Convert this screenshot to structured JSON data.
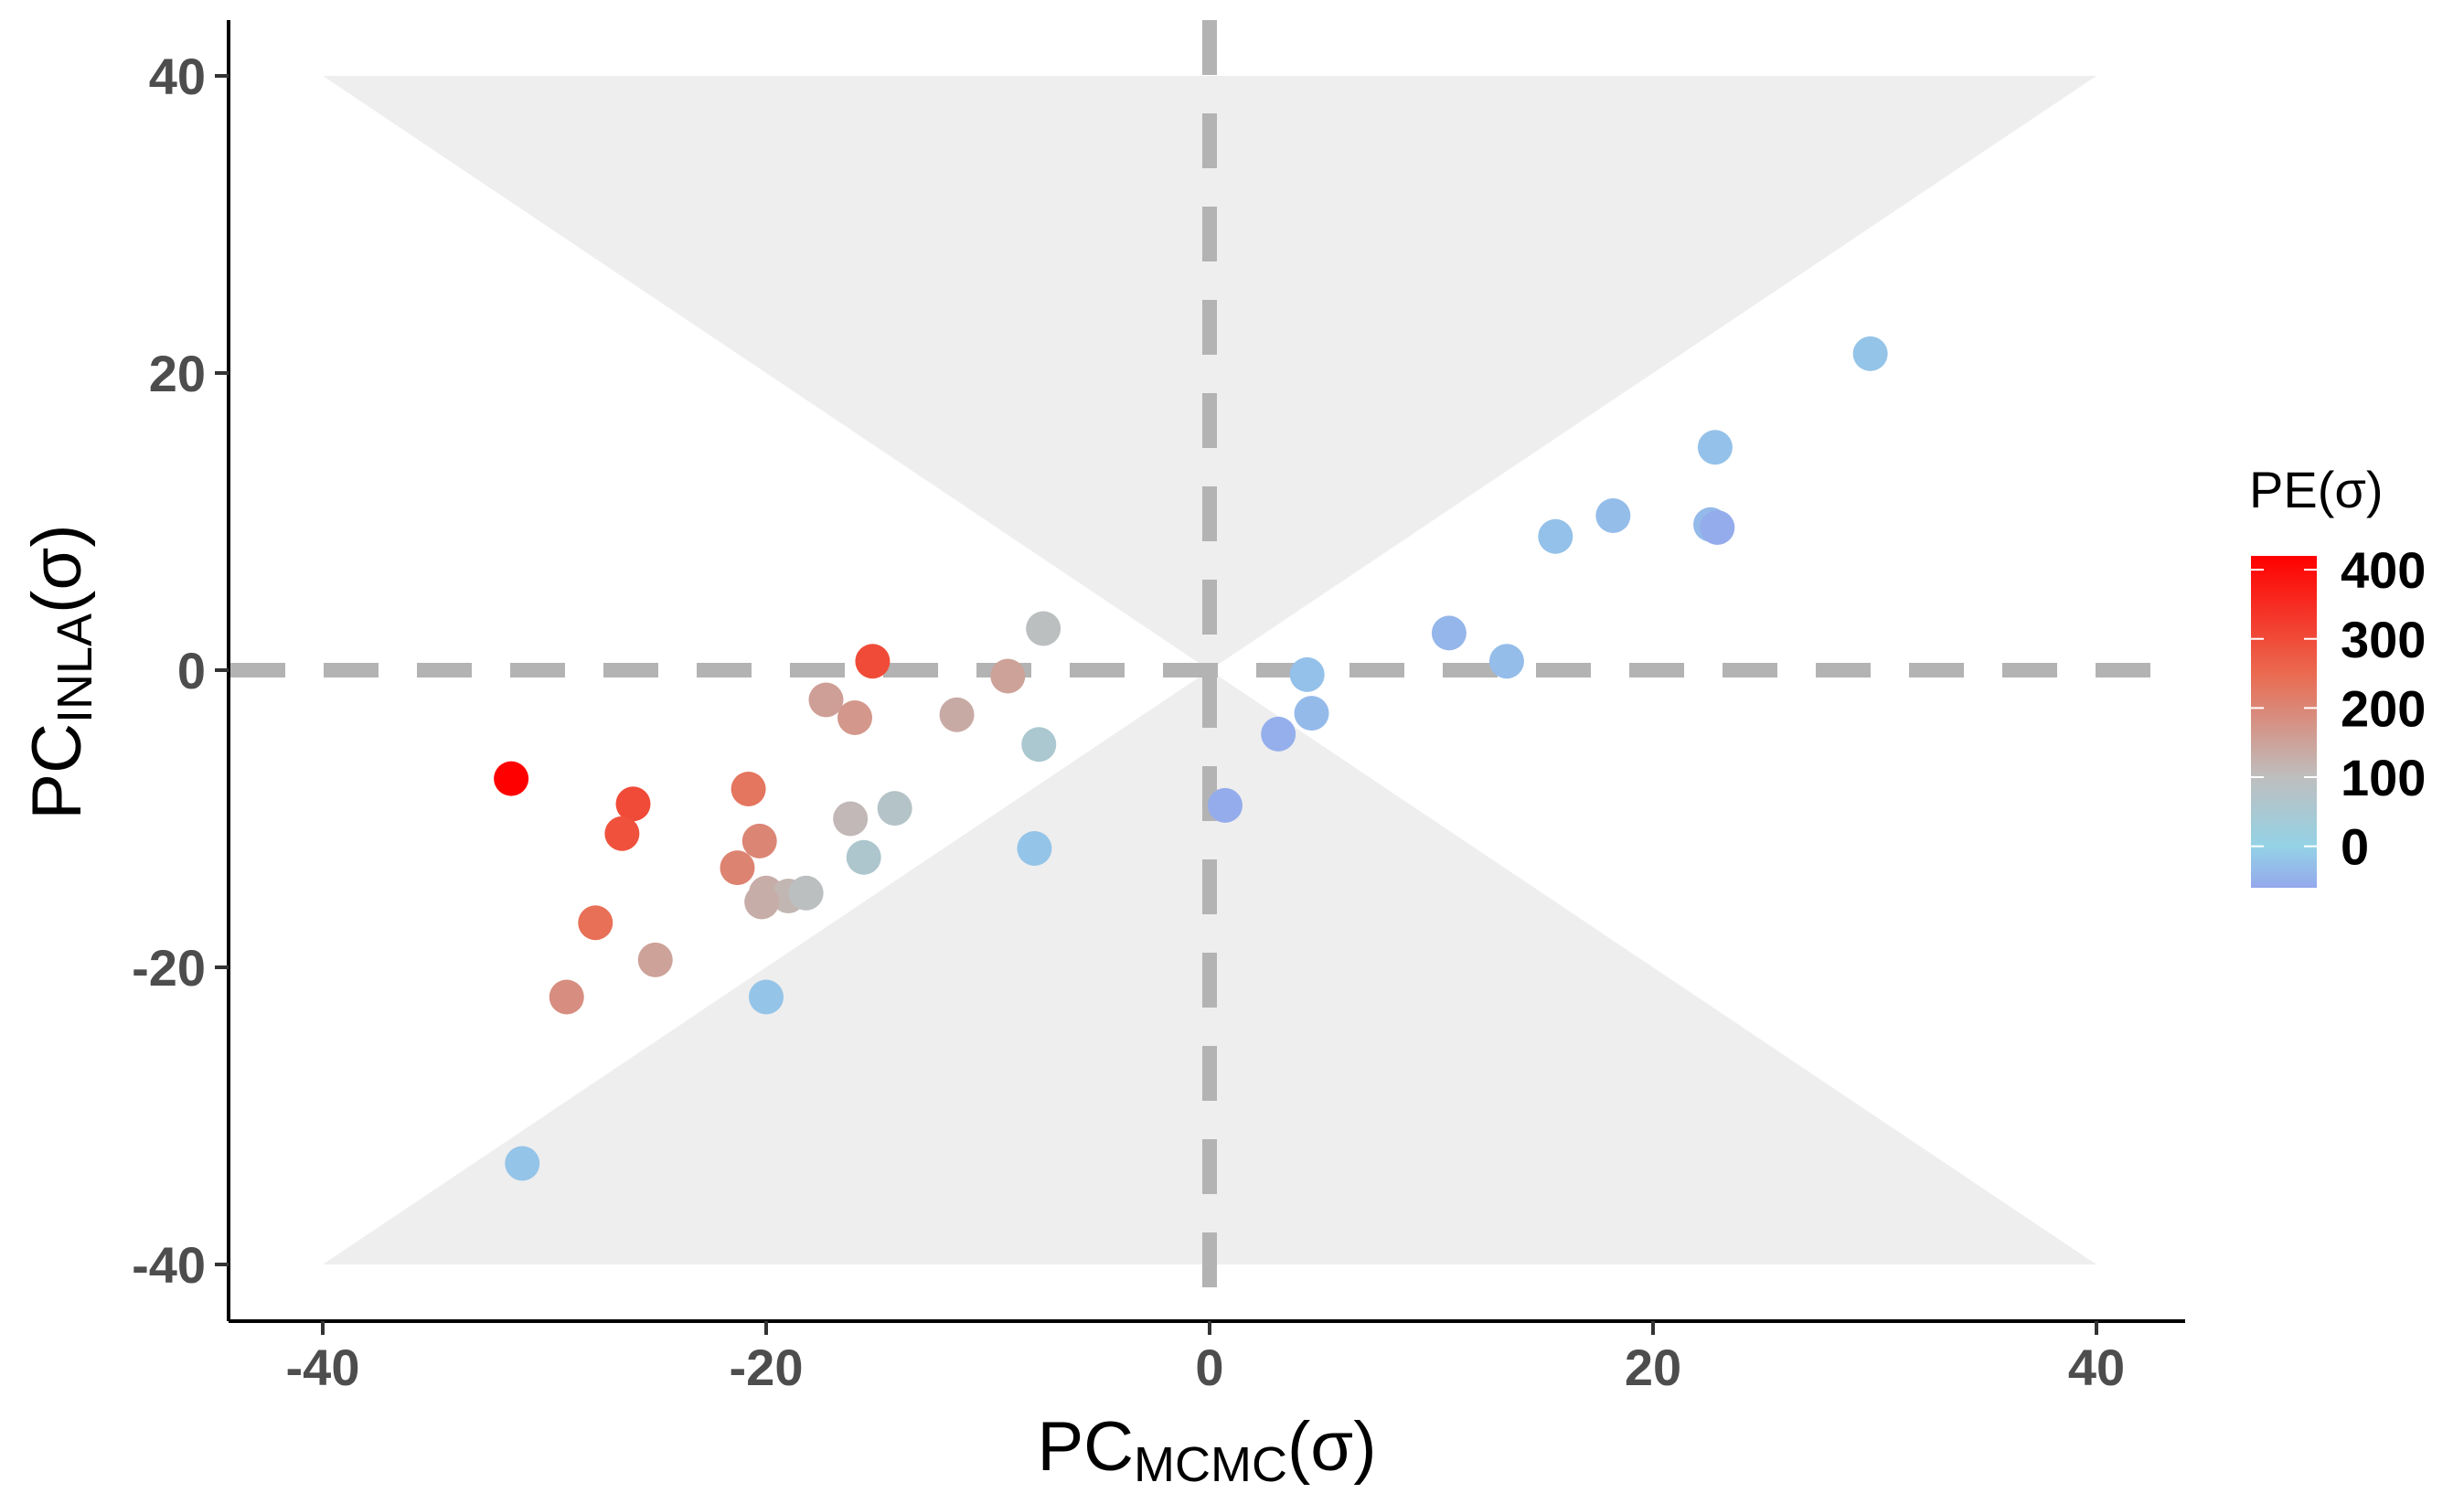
{
  "chart_data": {
    "type": "scatter",
    "title": "",
    "xlabel": {
      "main": "PC",
      "sub": "MCMC",
      "suffix": "(σ)"
    },
    "ylabel": {
      "main": "PC",
      "sub": "INLA",
      "suffix": "(σ)"
    },
    "xlim": [
      -44,
      44
    ],
    "ylim": [
      -44,
      44
    ],
    "xticks": [
      -40,
      -20,
      0,
      20,
      40
    ],
    "yticks": [
      -40,
      -20,
      0,
      20,
      40
    ],
    "grid": false,
    "reference_lines": {
      "x": 0,
      "y": 0,
      "style": "dashed",
      "color": "#b3b3b3"
    },
    "shaded_regions": [
      {
        "name": "upper-cone",
        "polygon": [
          [
            -40,
            40
          ],
          [
            40,
            40
          ],
          [
            0,
            0
          ]
        ],
        "color": "#eeeeee"
      },
      {
        "name": "lower-cone",
        "polygon": [
          [
            -40,
            -40
          ],
          [
            40,
            -40
          ],
          [
            0,
            0
          ]
        ],
        "color": "#eeeeee"
      }
    ],
    "color_scale": {
      "title": "PE(σ)",
      "domain": [
        -60,
        420
      ],
      "stops": [
        {
          "value": -60,
          "color": "#94a8ec"
        },
        {
          "value": 0,
          "color": "#94d2e6"
        },
        {
          "value": 100,
          "color": "#bebebe"
        },
        {
          "value": 250,
          "color": "#ea6a50"
        },
        {
          "value": 420,
          "color": "#ff0000"
        }
      ],
      "tick_values": [
        0,
        100,
        200,
        300,
        400
      ],
      "tick_labels": [
        "0",
        "100",
        "200",
        "300",
        "400"
      ],
      "legend_position": "right"
    },
    "points": [
      {
        "x": -31.5,
        "y": -7.3,
        "pe": 420
      },
      {
        "x": -26.0,
        "y": -9.0,
        "pe": 300
      },
      {
        "x": -26.5,
        "y": -11.0,
        "pe": 290
      },
      {
        "x": -27.7,
        "y": -17.0,
        "pe": 240
      },
      {
        "x": -29.0,
        "y": -22.0,
        "pe": 185
      },
      {
        "x": -25.0,
        "y": -19.5,
        "pe": 150
      },
      {
        "x": -31.0,
        "y": -33.2,
        "pe": -20
      },
      {
        "x": -20.8,
        "y": -8.0,
        "pe": 230
      },
      {
        "x": -21.3,
        "y": -13.3,
        "pe": 205
      },
      {
        "x": -20.3,
        "y": -11.5,
        "pe": 200
      },
      {
        "x": -20.0,
        "y": -15.0,
        "pe": 130
      },
      {
        "x": -19.0,
        "y": -15.2,
        "pe": 115
      },
      {
        "x": -18.2,
        "y": -15.0,
        "pe": 95
      },
      {
        "x": -20.2,
        "y": -15.6,
        "pe": 130
      },
      {
        "x": -20.0,
        "y": -22.0,
        "pe": -20
      },
      {
        "x": -15.2,
        "y": 0.6,
        "pe": 300
      },
      {
        "x": -17.3,
        "y": -2.0,
        "pe": 155
      },
      {
        "x": -16.0,
        "y": -3.2,
        "pe": 170
      },
      {
        "x": -16.2,
        "y": -10.0,
        "pe": 110
      },
      {
        "x": -15.6,
        "y": -12.6,
        "pe": 60
      },
      {
        "x": -14.2,
        "y": -9.3,
        "pe": 75
      },
      {
        "x": -11.4,
        "y": -3.0,
        "pe": 135
      },
      {
        "x": -9.1,
        "y": -0.4,
        "pe": 150
      },
      {
        "x": -7.5,
        "y": 2.8,
        "pe": 95
      },
      {
        "x": -7.7,
        "y": -5.0,
        "pe": 55
      },
      {
        "x": -7.9,
        "y": -12.0,
        "pe": -20
      },
      {
        "x": 0.7,
        "y": -9.1,
        "pe": -55
      },
      {
        "x": 3.1,
        "y": -4.3,
        "pe": -50
      },
      {
        "x": 4.4,
        "y": -0.3,
        "pe": -25
      },
      {
        "x": 4.6,
        "y": -2.9,
        "pe": -35
      },
      {
        "x": 10.8,
        "y": 2.5,
        "pe": -40
      },
      {
        "x": 13.4,
        "y": 0.6,
        "pe": -30
      },
      {
        "x": 15.6,
        "y": 9.0,
        "pe": -25
      },
      {
        "x": 18.2,
        "y": 10.4,
        "pe": -30
      },
      {
        "x": 22.6,
        "y": 9.8,
        "pe": -35
      },
      {
        "x": 22.9,
        "y": 9.6,
        "pe": -55
      },
      {
        "x": 22.8,
        "y": 15.0,
        "pe": -25
      },
      {
        "x": 29.8,
        "y": 21.3,
        "pe": -20
      }
    ]
  }
}
